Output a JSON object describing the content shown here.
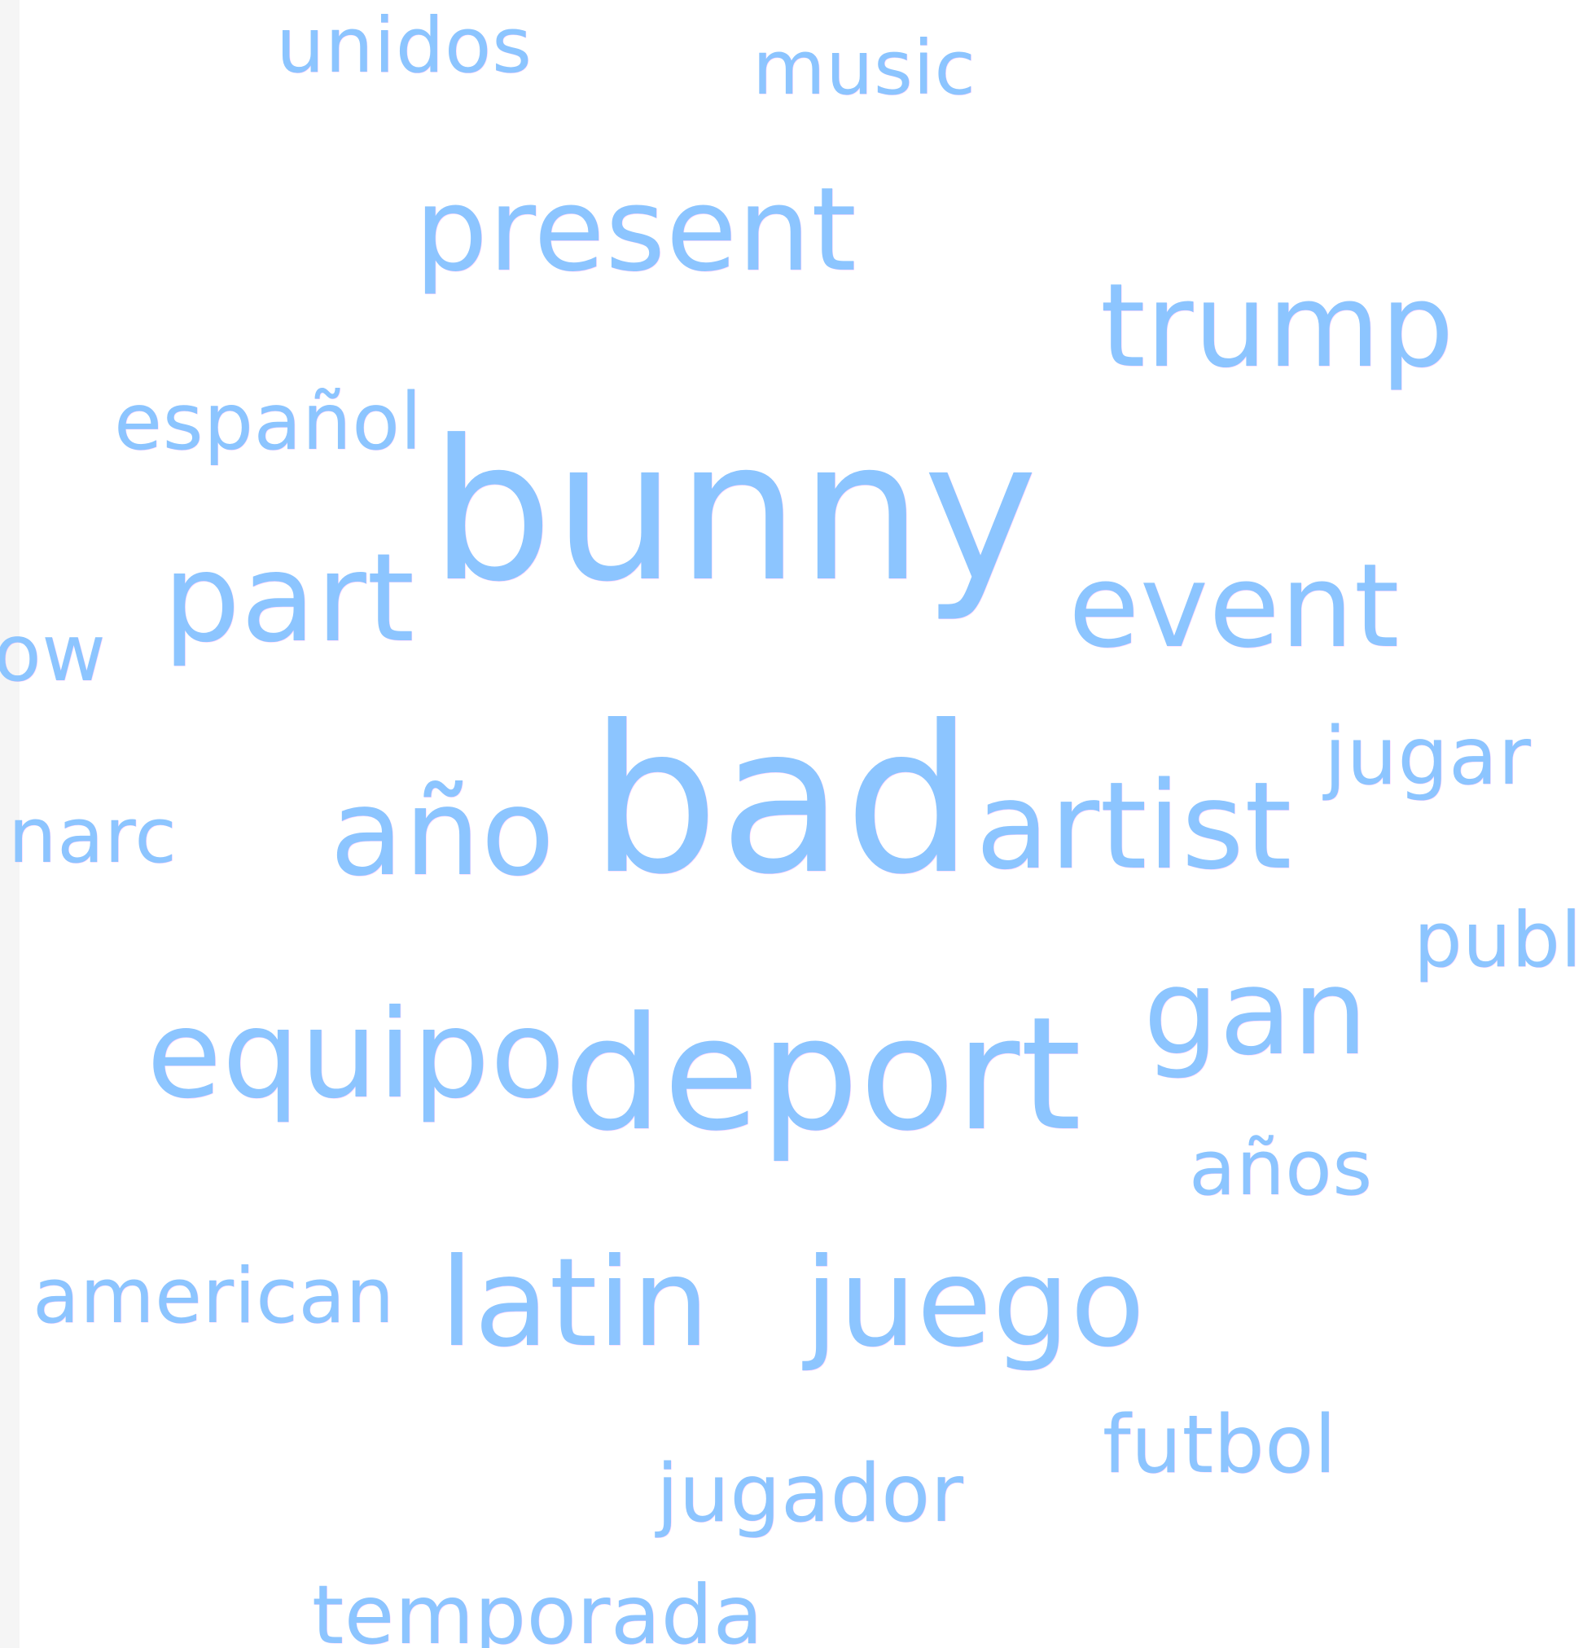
{
  "word_cloud": {
    "text_color": "#8cc5ff",
    "background": "#ffffff",
    "words": [
      {
        "text": "unidos"
      },
      {
        "text": "music"
      },
      {
        "text": "present"
      },
      {
        "text": "trump"
      },
      {
        "text": "español"
      },
      {
        "text": "bunny"
      },
      {
        "text": "part"
      },
      {
        "text": "event"
      },
      {
        "text": "ow"
      },
      {
        "text": "año"
      },
      {
        "text": "bad"
      },
      {
        "text": "artist"
      },
      {
        "text": "jugar"
      },
      {
        "text": "narc"
      },
      {
        "text": "publ"
      },
      {
        "text": "gan"
      },
      {
        "text": "equipo"
      },
      {
        "text": "deport"
      },
      {
        "text": "años"
      },
      {
        "text": "american"
      },
      {
        "text": "latin"
      },
      {
        "text": "juego"
      },
      {
        "text": "futbol"
      },
      {
        "text": "jugador"
      },
      {
        "text": "temporada"
      }
    ]
  }
}
